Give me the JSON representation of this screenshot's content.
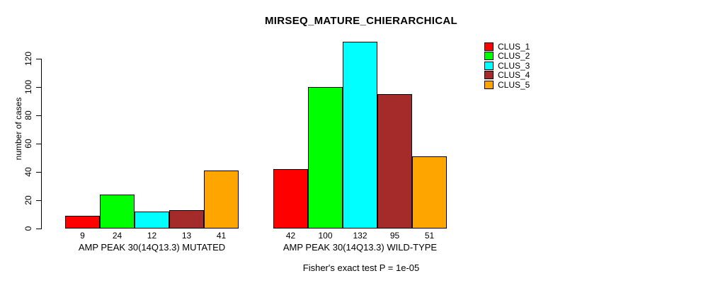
{
  "chart_data": {
    "type": "bar",
    "title": "MIRSEQ_MATURE_CHIERARCHICAL",
    "xlabel": "",
    "ylabel": "number of cases",
    "categories": [
      "AMP PEAK 30(14Q13.3) MUTATED",
      "AMP PEAK 30(14Q13.3) WILD-TYPE"
    ],
    "series": [
      {
        "name": "CLUS_1",
        "color": "#FF0000",
        "values": [
          9,
          42
        ]
      },
      {
        "name": "CLUS_2",
        "color": "#00FF00",
        "values": [
          24,
          100
        ]
      },
      {
        "name": "CLUS_3",
        "color": "#00FFFF",
        "values": [
          12,
          132
        ]
      },
      {
        "name": "CLUS_4",
        "color": "#A52A2A",
        "values": [
          13,
          95
        ]
      },
      {
        "name": "CLUS_5",
        "color": "#FFA500",
        "values": [
          41,
          51
        ]
      }
    ],
    "yticks": [
      0,
      20,
      40,
      60,
      80,
      100,
      120
    ],
    "ylim": [
      0,
      132
    ],
    "grid": false,
    "legend_position": "right",
    "value_labels_shown": true,
    "annotation": "Fisher's exact test P = 1e-05"
  }
}
